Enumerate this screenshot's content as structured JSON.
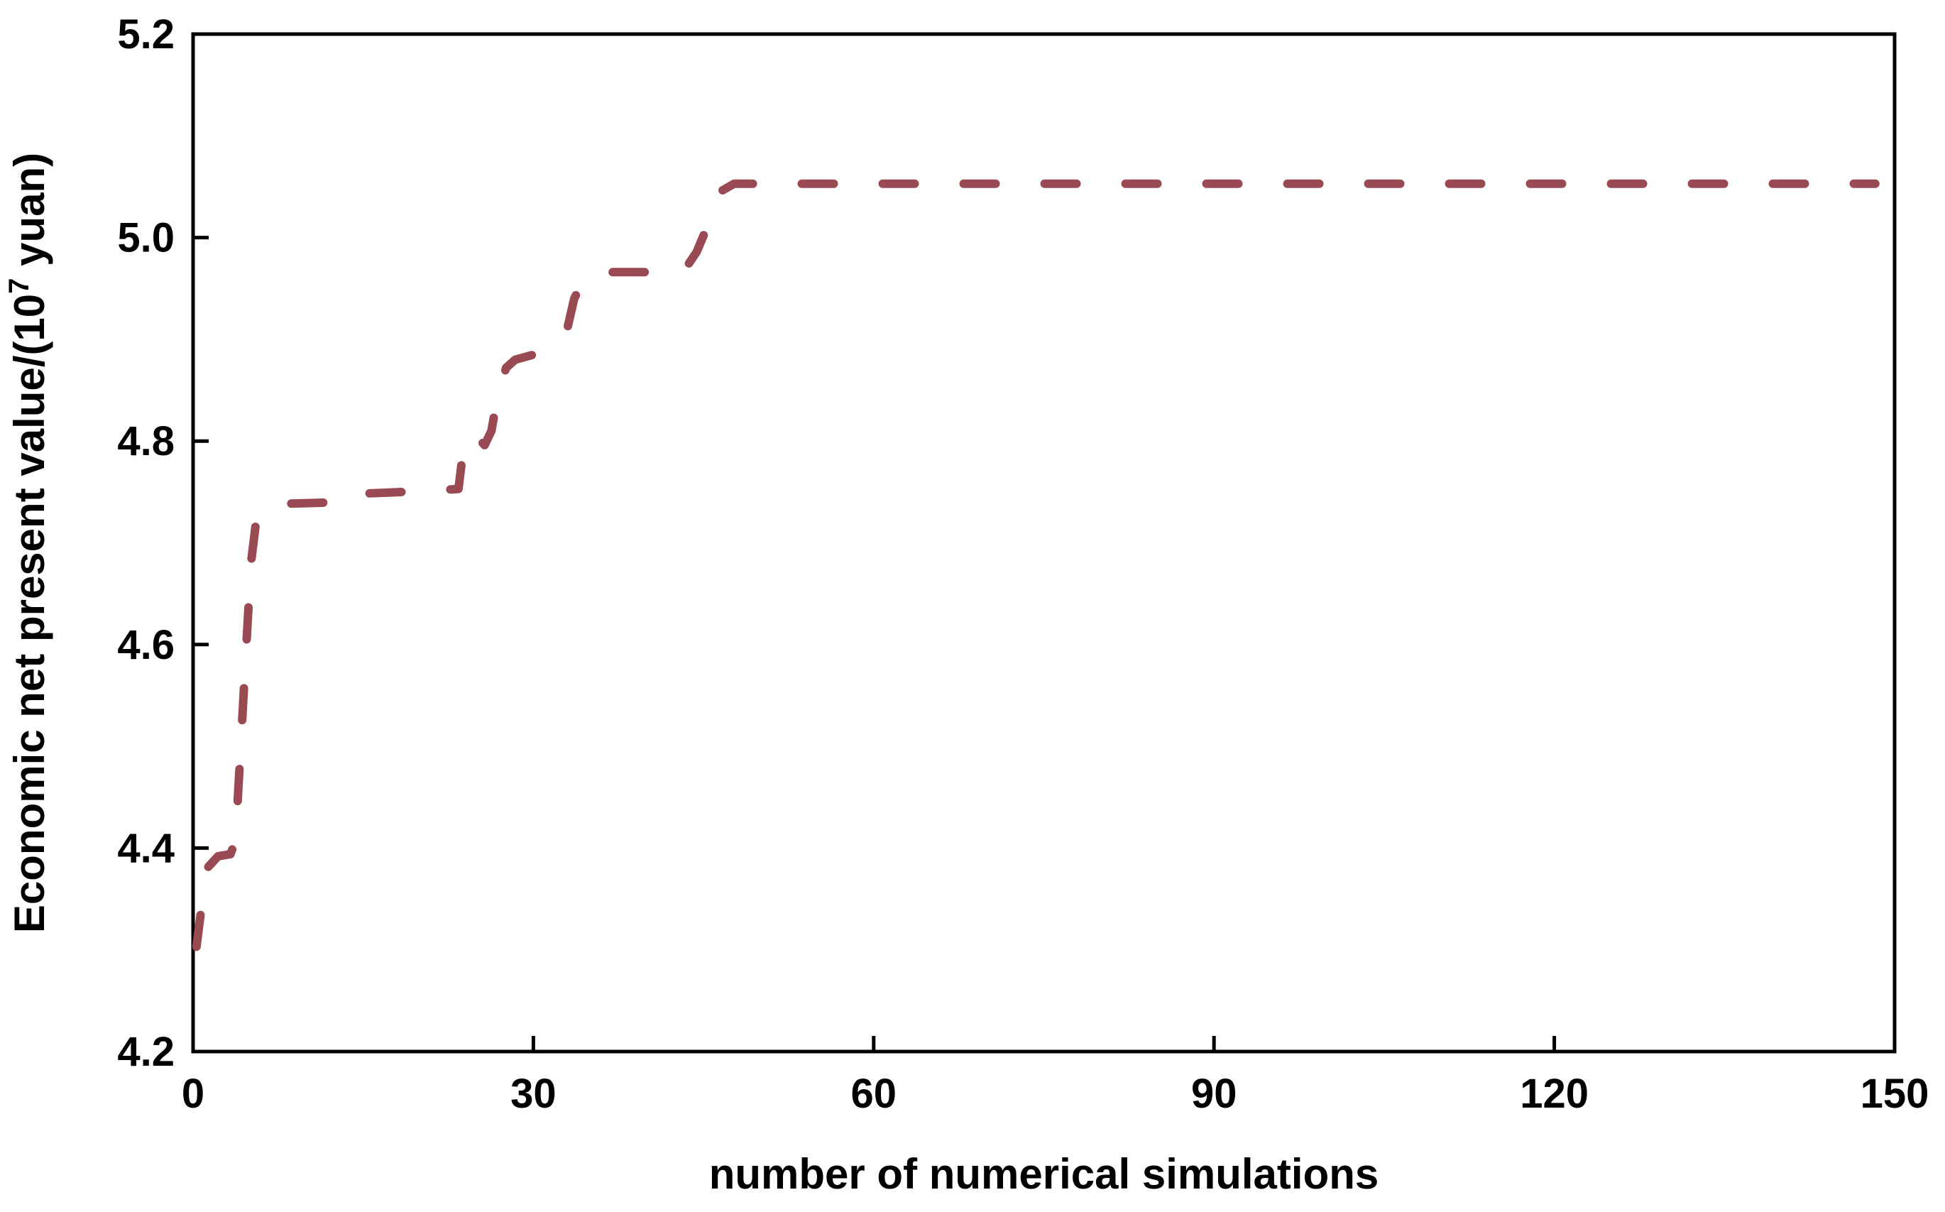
{
  "chart_data": {
    "type": "line",
    "title": "",
    "xlabel": "number of numerical simulations",
    "ylabel": "Economic net present value/(10^7 yuan)",
    "ylabel_parts": {
      "prefix": "Economic net present value/(10",
      "superscript": "7",
      "suffix": " yuan)"
    },
    "xlim": [
      0,
      150
    ],
    "ylim": [
      4.2,
      5.2
    ],
    "xticks": [
      0,
      30,
      60,
      90,
      120,
      150
    ],
    "yticks": [
      4.2,
      4.4,
      4.6,
      4.8,
      5.0,
      5.2
    ],
    "xtick_labels": [
      "0",
      "30",
      "60",
      "90",
      "120",
      "150"
    ],
    "ytick_labels": [
      "4.2",
      "4.4",
      "4.6",
      "4.8",
      "5.0",
      "5.2"
    ],
    "grid": false,
    "legend": null,
    "series": [
      {
        "name": "economic-npv-convergence",
        "style": "dashed",
        "color": "#9a4a53",
        "x": [
          0.3,
          0.8,
          1.3,
          2.2,
          3.3,
          3.6,
          3.9,
          4.3,
          4.7,
          5.1,
          5.5,
          6.3,
          7.0,
          13.2,
          14.2,
          20.8,
          23.4,
          23.8,
          24.7,
          25.7,
          26.3,
          26.8,
          27.6,
          28.4,
          31.0,
          32.9,
          33.6,
          34.4,
          35.3,
          43.2,
          44.4,
          45.6,
          46.6,
          47.7,
          148.3
        ],
        "y": [
          4.303,
          4.347,
          4.381,
          4.392,
          4.394,
          4.403,
          4.44,
          4.52,
          4.6,
          4.68,
          4.716,
          4.735,
          4.738,
          4.74,
          4.748,
          4.751,
          4.753,
          4.79,
          4.808,
          4.796,
          4.81,
          4.842,
          4.872,
          4.88,
          4.888,
          4.906,
          4.94,
          4.958,
          4.966,
          4.966,
          4.986,
          5.018,
          5.046,
          5.053,
          5.053
        ]
      }
    ]
  },
  "colors": {
    "axis": "#000000",
    "background": "#ffffff",
    "line": "#9a4a53"
  }
}
